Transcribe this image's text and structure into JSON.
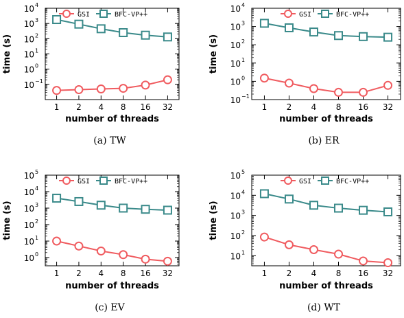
{
  "chart_data": [
    {
      "type": "line",
      "caption": "(a)  TW",
      "categories": [
        "1",
        "2",
        "4",
        "8",
        "16",
        "32"
      ],
      "xlabel": "number of threads",
      "ylabel": "time (s)",
      "yscale": "log",
      "ylim_exp": [
        -2,
        4
      ],
      "ytick_exps": [
        -1,
        0,
        1,
        2,
        3,
        4
      ],
      "legend_placement": "top-right",
      "series": [
        {
          "name": "GSI",
          "color": "#f05b5f",
          "marker": "circle",
          "values": [
            0.04,
            0.045,
            0.05,
            0.055,
            0.09,
            0.2
          ]
        },
        {
          "name": "BFC-VP++",
          "color": "#3a8a8a",
          "marker": "square",
          "values": [
            1800,
            900,
            450,
            250,
            170,
            130
          ]
        }
      ]
    },
    {
      "type": "line",
      "caption": "(b)  ER",
      "categories": [
        "1",
        "2",
        "4",
        "8",
        "16",
        "32"
      ],
      "xlabel": "number of threads",
      "ylabel": "time (s)",
      "yscale": "log",
      "ylim_exp": [
        -1,
        4
      ],
      "ytick_exps": [
        -1,
        0,
        1,
        2,
        3,
        4
      ],
      "legend_placement": "top-right",
      "series": [
        {
          "name": "GSI",
          "color": "#f05b5f",
          "marker": "circle",
          "values": [
            1.5,
            0.8,
            0.4,
            0.25,
            0.25,
            0.6
          ]
        },
        {
          "name": "BFC-VP++",
          "color": "#3a8a8a",
          "marker": "square",
          "values": [
            1500,
            850,
            500,
            320,
            280,
            260
          ]
        }
      ]
    },
    {
      "type": "line",
      "caption": "(c)  EV",
      "categories": [
        "1",
        "2",
        "4",
        "8",
        "16",
        "32"
      ],
      "xlabel": "number of threads",
      "ylabel": "time (s)",
      "yscale": "log",
      "ylim_exp": [
        -0.5,
        5
      ],
      "ytick_exps": [
        0,
        1,
        2,
        3,
        4,
        5
      ],
      "legend_placement": "top-right",
      "series": [
        {
          "name": "GSI",
          "color": "#f05b5f",
          "marker": "circle",
          "values": [
            10,
            5,
            2.5,
            1.5,
            0.8,
            0.6
          ]
        },
        {
          "name": "BFC-VP++",
          "color": "#3a8a8a",
          "marker": "square",
          "values": [
            4000,
            2500,
            1500,
            1000,
            850,
            750
          ]
        }
      ]
    },
    {
      "type": "line",
      "caption": "(d)  WT",
      "categories": [
        "1",
        "2",
        "4",
        "8",
        "16",
        "32"
      ],
      "xlabel": "number of threads",
      "ylabel": "time (s)",
      "yscale": "log",
      "ylim_exp": [
        0.5,
        5
      ],
      "ytick_exps": [
        1,
        2,
        3,
        4,
        5
      ],
      "legend_placement": "top-right",
      "series": [
        {
          "name": "GSI",
          "color": "#f05b5f",
          "marker": "circle",
          "values": [
            85,
            35,
            20,
            12,
            5.5,
            4.5
          ]
        },
        {
          "name": "BFC-VP++",
          "color": "#3a8a8a",
          "marker": "square",
          "values": [
            12000,
            6500,
            3200,
            2300,
            1800,
            1500
          ]
        }
      ]
    }
  ]
}
